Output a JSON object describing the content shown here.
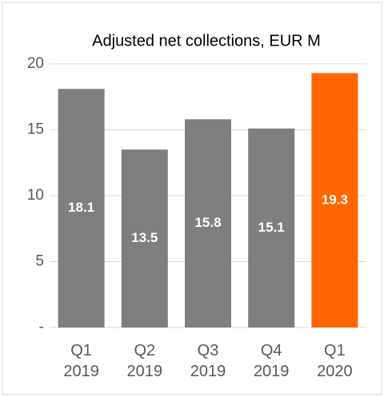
{
  "chart_data": {
    "type": "bar",
    "title": "Adjusted net collections, EUR M",
    "categories": [
      "Q1 2019",
      "Q2 2019",
      "Q3 2019",
      "Q4 2019",
      "Q1 2020"
    ],
    "values": [
      18.1,
      13.5,
      15.8,
      15.1,
      19.3
    ],
    "colors": [
      "#7f7f7f",
      "#7f7f7f",
      "#7f7f7f",
      "#7f7f7f",
      "#ff6600"
    ],
    "ylim": [
      0,
      20
    ],
    "yticks": [
      {
        "value": 0,
        "label": "-"
      },
      5,
      10,
      15,
      20
    ],
    "grid": true
  }
}
